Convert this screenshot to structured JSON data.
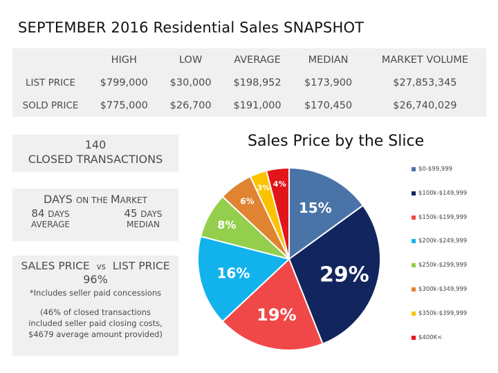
{
  "page": {
    "title": "SEPTEMBER 2016 Residential Sales SNAPSHOT"
  },
  "table": {
    "headers": [
      "",
      "HIGH",
      "LOW",
      "AVERAGE",
      "MEDIAN",
      "MARKET VOLUME"
    ],
    "rows": [
      {
        "label": "LIST PRICE",
        "high": "$799,000",
        "low": "$30,000",
        "average": "$198,952",
        "median": "$173,900",
        "volume": "$27,853,345"
      },
      {
        "label": "SOLD PRICE",
        "high": "$775,000",
        "low": "$26,700",
        "average": "$191,000",
        "median": "$170,450",
        "volume": "$26,740,029"
      }
    ]
  },
  "closed": {
    "count": "140",
    "label": "CLOSED TRANSACTIONS"
  },
  "days": {
    "heading_part1": "D",
    "heading_part1b": "AYS ",
    "heading_sc1": "ON THE ",
    "heading_part2": "M",
    "heading_sc2": "ARKET",
    "average_value": "84",
    "average_unit": "DAYS",
    "average_label": "AVERAGE",
    "median_value": "45",
    "median_unit": "DAYS",
    "median_label": "MEDIAN"
  },
  "sales_vs_list": {
    "left": "SALES PRICE",
    "vs": "vs",
    "right": "LIST PRICE",
    "percent": "96%",
    "note": "*Includes seller paid concessions",
    "detail_line1": "(46% of closed transactions",
    "detail_line2": "included seller paid closing costs,",
    "detail_line3": "$4679 average amount provided)"
  },
  "chart_data": {
    "type": "pie",
    "title": "Sales Price by the Slice",
    "start_angle_deg": 0,
    "direction": "clockwise",
    "legend_position": "right",
    "slices": [
      {
        "label": "$0-$99,999",
        "value": 15,
        "display": "15%",
        "color": "#4a74a8"
      },
      {
        "label": "$100k-$149,999",
        "value": 29,
        "display": "29%",
        "color": "#13255e"
      },
      {
        "label": "$150k-$199,999",
        "value": 19,
        "display": "19%",
        "color": "#f04848"
      },
      {
        "label": "$200k-$249,999",
        "value": 16,
        "display": "16%",
        "color": "#12b2ec"
      },
      {
        "label": "$250k-$299,999",
        "value": 8,
        "display": "8%",
        "color": "#93cf4c"
      },
      {
        "label": "$300k-$349,999",
        "value": 6,
        "display": "6%",
        "color": "#e08432"
      },
      {
        "label": "$350k-$399,999",
        "value": 3,
        "display": "3%",
        "color": "#fbc200"
      },
      {
        "label": "$400K<",
        "value": 4,
        "display": "4%",
        "color": "#e2161a"
      }
    ]
  }
}
